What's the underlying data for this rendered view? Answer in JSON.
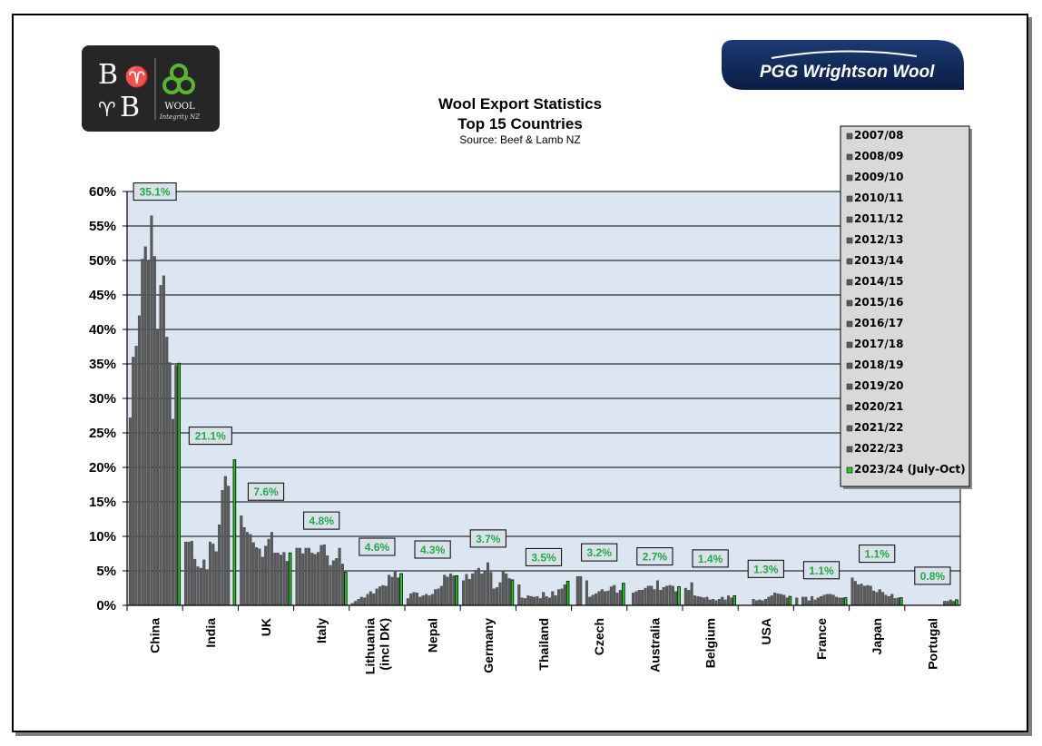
{
  "logos": {
    "left": {
      "letters": [
        "B",
        "B"
      ],
      "line1": "WOOL",
      "line2": "Integrity NZ",
      "bg": "#262626"
    },
    "right": {
      "text": "PGG Wrightson Wool",
      "bg": "#0d2451",
      "accent": "#7ec242"
    }
  },
  "chart_data": {
    "type": "bar",
    "title": "Wool Export Statistics",
    "title_line2": "Top 15 Countries",
    "subtitle": "Source: Beef & Lamb NZ",
    "xlabel": "",
    "ylabel": "",
    "ylim": [
      0,
      60
    ],
    "yticks": [
      "0%",
      "5%",
      "10%",
      "15%",
      "20%",
      "25%",
      "30%",
      "35%",
      "40%",
      "45%",
      "50%",
      "55%",
      "60%"
    ],
    "grid": true,
    "legend_position": "top-right",
    "colors": {
      "plot_bg": "#dce6f2",
      "bar": "#595959",
      "current": "#22cc22",
      "label_text": "#22aa44"
    },
    "categories": [
      "China",
      "India",
      "UK",
      "Italy",
      "Lithuania (incl DK)",
      "Nepal",
      "Germany",
      "Thailand",
      "Czech",
      "Australia",
      "Belgium",
      "USA",
      "France",
      "Japan",
      "Portugal"
    ],
    "series_names": [
      "2007/08",
      "2008/09",
      "2009/10",
      "2010/11",
      "2011/12",
      "2012/13",
      "2013/14",
      "2014/15",
      "2015/16",
      "2016/17",
      "2017/18",
      "2018/19",
      "2019/20",
      "2020/21",
      "2021/22",
      "2022/23",
      "2023/24 (July-Oct)"
    ],
    "values": [
      [
        27.2,
        36.0,
        37.6,
        42.0,
        50.2,
        52.0,
        50.0,
        56.5,
        50.6,
        40.0,
        46.4,
        47.8,
        38.9,
        35.2,
        27.0,
        34.8,
        35.1
      ],
      [
        9.2,
        9.2,
        9.3,
        6.7,
        5.6,
        5.4,
        6.6,
        5.2,
        9.2,
        8.9,
        7.8,
        11.7,
        16.7,
        18.7,
        17.3,
        null,
        21.1
      ],
      [
        13.0,
        11.3,
        10.6,
        10.3,
        9.1,
        8.4,
        8.2,
        7.0,
        8.6,
        9.6,
        10.6,
        7.6,
        7.6,
        7.3,
        7.7,
        6.4,
        7.6
      ],
      [
        8.3,
        8.3,
        7.5,
        8.3,
        8.3,
        7.6,
        7.4,
        7.7,
        8.7,
        8.8,
        7.2,
        5.8,
        6.5,
        6.8,
        8.3,
        6.0,
        4.8
      ],
      [
        0.3,
        0.6,
        0.9,
        1.2,
        1.1,
        1.6,
        2.0,
        1.7,
        2.4,
        2.7,
        2.9,
        2.8,
        4.4,
        4.1,
        5.0,
        4.0,
        4.6
      ],
      [
        1.0,
        1.7,
        1.9,
        1.8,
        1.2,
        1.4,
        1.6,
        1.4,
        1.6,
        2.3,
        2.4,
        2.8,
        4.4,
        4.1,
        4.6,
        4.3,
        4.3
      ],
      [
        3.6,
        4.5,
        3.8,
        4.6,
        5.1,
        5.4,
        4.6,
        5.0,
        6.2,
        4.8,
        2.4,
        2.6,
        3.3,
        5.0,
        4.6,
        3.9,
        3.7
      ],
      [
        3.0,
        1.1,
        1.0,
        1.4,
        1.3,
        1.2,
        1.3,
        1.0,
        1.9,
        1.3,
        1.1,
        2.0,
        1.4,
        2.3,
        2.4,
        3.0,
        3.5
      ],
      [
        null,
        4.2,
        4.2,
        null,
        3.6,
        1.2,
        1.5,
        1.7,
        2.0,
        2.3,
        2.0,
        2.1,
        2.7,
        2.9,
        1.8,
        2.2,
        3.2
      ],
      [
        null,
        1.8,
        2.0,
        2.2,
        2.2,
        2.5,
        2.8,
        2.8,
        2.3,
        3.6,
        2.2,
        2.6,
        2.8,
        2.9,
        2.8,
        2.0,
        2.7
      ],
      [
        2.5,
        2.2,
        3.3,
        1.4,
        1.3,
        1.2,
        1.1,
        1.2,
        0.8,
        0.9,
        0.7,
        0.9,
        1.2,
        0.8,
        1.4,
        1.1,
        1.4
      ],
      [
        null,
        null,
        null,
        null,
        0.9,
        0.7,
        0.8,
        0.7,
        0.9,
        1.2,
        1.4,
        1.8,
        1.7,
        1.6,
        1.5,
        1.1,
        1.3
      ],
      [
        1.1,
        null,
        1.2,
        1.2,
        0.7,
        1.3,
        0.8,
        1.1,
        1.3,
        1.5,
        1.6,
        1.6,
        1.5,
        1.2,
        1.1,
        1.1,
        1.1
      ],
      [
        4.0,
        3.5,
        3.0,
        3.1,
        2.8,
        2.9,
        2.8,
        2.1,
        1.9,
        2.3,
        1.9,
        1.5,
        1.3,
        1.6,
        1.0,
        1.1,
        1.1
      ],
      [
        null,
        null,
        null,
        null,
        null,
        null,
        null,
        null,
        null,
        null,
        null,
        null,
        0.6,
        0.6,
        0.8,
        0.6,
        0.8
      ]
    ],
    "data_labels": [
      "35.1%",
      "21.1%",
      "7.6%",
      "4.8%",
      "4.6%",
      "4.3%",
      "3.7%",
      "3.5%",
      "3.2%",
      "2.7%",
      "1.4%",
      "1.3%",
      "1.1%",
      "1.1%",
      "0.8%"
    ]
  }
}
